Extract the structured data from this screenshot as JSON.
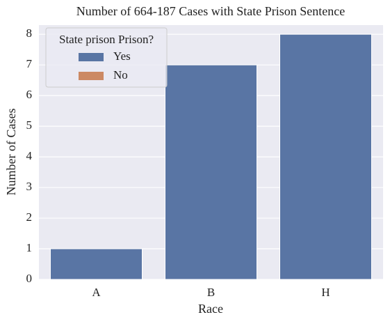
{
  "chart_data": {
    "type": "bar",
    "title": "Number of 664-187 Cases with State Prison Sentence",
    "x_label": "Race",
    "y_label": "Number of Cases",
    "categories": [
      "A",
      "B",
      "H"
    ],
    "series": [
      {
        "name": "Yes",
        "color": "#5975a4",
        "values": [
          1,
          7,
          8
        ]
      },
      {
        "name": "No",
        "color": "#cc8963",
        "values": [
          null,
          null,
          null
        ]
      }
    ],
    "legend_title": "State prison Prison?",
    "legend": "upper left",
    "ylim": [
      0,
      8.3
    ],
    "yticks": [
      0,
      1,
      2,
      3,
      4,
      5,
      6,
      7,
      8
    ],
    "grid": true
  }
}
